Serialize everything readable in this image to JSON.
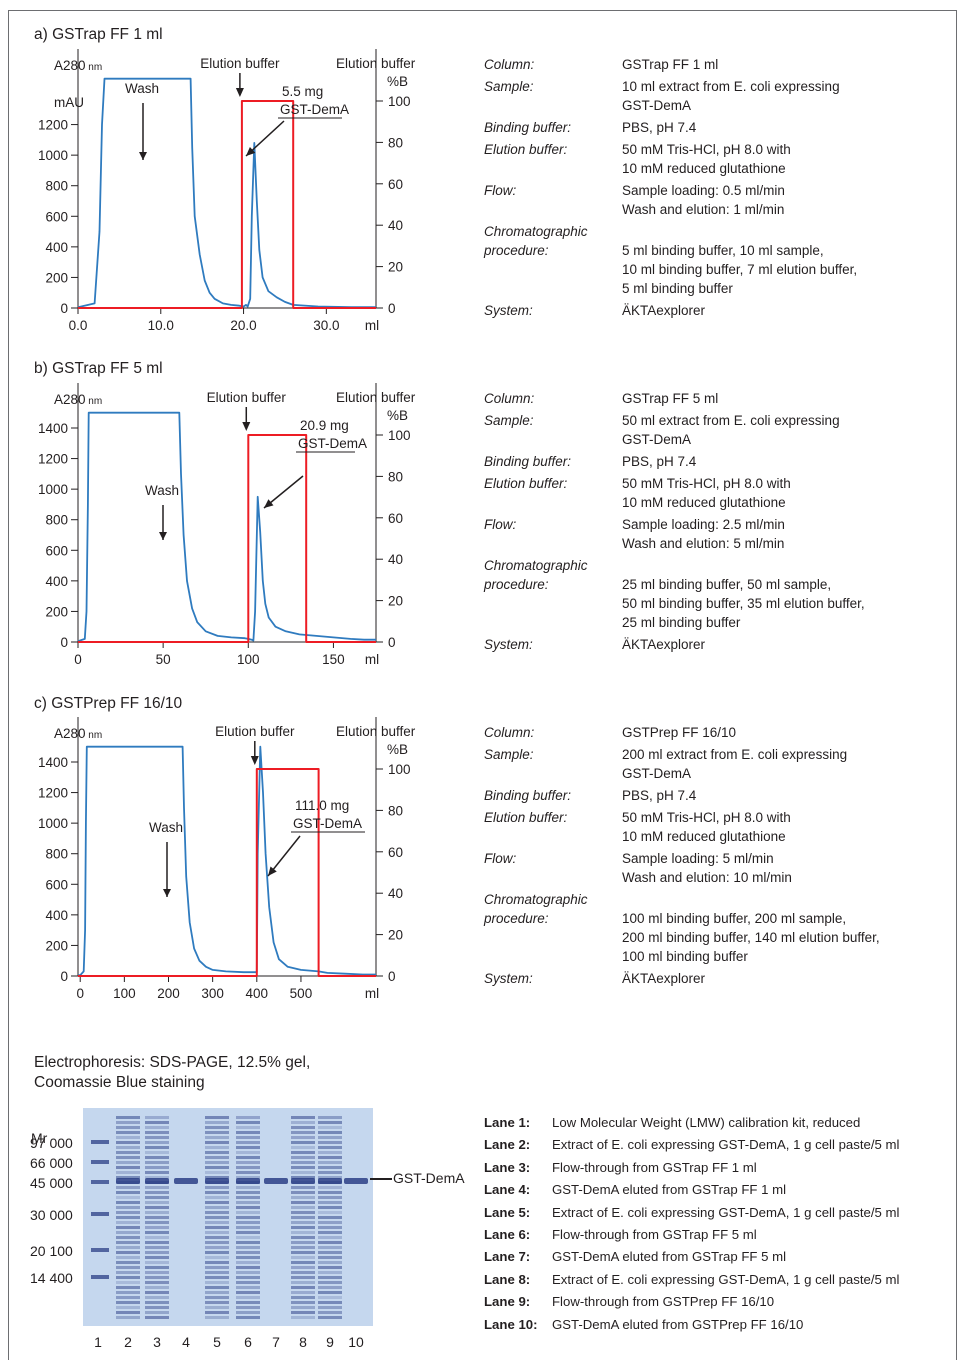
{
  "panels": [
    {
      "title": "a) GSTrap FF 1 ml",
      "chart_data": {
        "type": "line",
        "ylabel_left": "A280 nm",
        "ylabel_left_unit": "mAU",
        "ylabel_right_top": "Elution buffer",
        "ylabel_right_unit": "%B",
        "xunit": "ml",
        "xlim": [
          0,
          36
        ],
        "xticks": [
          0,
          10,
          20,
          30
        ],
        "xtick_labels": [
          "0.0",
          "10.0",
          "20.0",
          "30.0"
        ],
        "ylim_left": [
          0,
          1400
        ],
        "yticks_left": [
          0,
          200,
          400,
          600,
          800,
          1000,
          1200
        ],
        "ylim_right": [
          0,
          100
        ],
        "yticks_right": [
          0,
          20,
          40,
          60,
          80,
          100
        ],
        "series": [
          {
            "color": "#2f7bbf",
            "x": [
              -1,
              0,
              2.0,
              2.6,
              2.9,
              3.2,
              13.6,
              13.8,
              14.1,
              14.7,
              15.3,
              15.9,
              16.5,
              17.5,
              18.5,
              19.5,
              20.0,
              20.3,
              20.5,
              20.8,
              21.0,
              21.3,
              21.6,
              21.9,
              22.3,
              23,
              24,
              25,
              26,
              29,
              33,
              36
            ],
            "y": [
              5,
              5,
              30,
              500,
              1200,
              1500,
              1500,
              1050,
              600,
              350,
              180,
              100,
              60,
              30,
              20,
              15,
              10,
              20,
              10,
              60,
              600,
              1080,
              700,
              380,
              200,
              110,
              70,
              40,
              20,
              10,
              5,
              5
            ]
          },
          {
            "color": "#ed1c24",
            "x": [
              0,
              19.8,
              19.8,
              26.0,
              26.0,
              36
            ],
            "y": [
              0,
              0,
              100,
              100,
              0,
              0
            ],
            "axis": "right"
          }
        ],
        "annotations": {
          "wash": "Wash",
          "elution": "Elution buffer",
          "mg": "5.5 mg",
          "protein": "GST-DemA"
        }
      },
      "info": [
        {
          "label": "Column:",
          "value": "GSTrap FF 1 ml"
        },
        {
          "label": "Sample:",
          "value": "10 ml extract from E. coli expressing\nGST-DemA"
        },
        {
          "label": "Binding buffer:",
          "value": "PBS, pH 7.4"
        },
        {
          "label": "Elution buffer:",
          "value": "50 mM Tris-HCl, pH 8.0 with\n10 mM reduced glutathione"
        },
        {
          "label": "Flow:",
          "value": "Sample loading: 0.5 ml/min\nWash and elution: 1 ml/min"
        },
        {
          "label": "Chromatographic\nprocedure:",
          "value": "\n5 ml binding buffer, 10 ml sample,\n10 ml binding buffer, 7 ml elution buffer,\n5 ml binding buffer"
        },
        {
          "label": "System:",
          "value": "ÄKTAexplorer"
        }
      ]
    },
    {
      "title": "b) GSTrap FF 5 ml",
      "chart_data": {
        "type": "line",
        "ylabel_left": "A280 nm",
        "ylabel_left_unit": "",
        "ylabel_right_top": "Elution buffer",
        "ylabel_right_unit": "%B",
        "xunit": "ml",
        "xlim": [
          0,
          175
        ],
        "xticks": [
          0,
          50,
          100,
          150
        ],
        "xtick_labels": [
          "0",
          "50",
          "100",
          "150"
        ],
        "ylim_left": [
          0,
          1400
        ],
        "yticks_left": [
          0,
          200,
          400,
          600,
          800,
          1000,
          1200,
          1400
        ],
        "ylim_right": [
          0,
          100
        ],
        "yticks_right": [
          0,
          20,
          40,
          60,
          80,
          100
        ],
        "series": [
          {
            "color": "#2f7bbf",
            "x": [
              -3,
              0,
              4,
              5,
              5.8,
              6.3,
              59.5,
              60.5,
              62,
              64,
              67,
              70,
              75,
              82,
              90,
              98,
              100,
              102,
              103,
              104,
              105.5,
              107,
              108.5,
              110,
              112,
              116,
              122,
              130,
              140,
              150,
              160,
              168,
              175
            ],
            "y": [
              5,
              5,
              20,
              200,
              900,
              1500,
              1500,
              1100,
              700,
              400,
              220,
              130,
              70,
              40,
              30,
              25,
              20,
              15,
              10,
              200,
              950,
              720,
              400,
              250,
              160,
              100,
              70,
              50,
              40,
              30,
              20,
              15,
              15
            ]
          },
          {
            "color": "#ed1c24",
            "x": [
              0,
              100,
              100,
              134,
              134,
              175
            ],
            "y": [
              0,
              0,
              100,
              100,
              0,
              0
            ],
            "axis": "right"
          }
        ],
        "annotations": {
          "wash": "Wash",
          "elution": "Elution buffer",
          "mg": "20.9 mg",
          "protein": "GST-DemA"
        }
      },
      "info": [
        {
          "label": "Column:",
          "value": "GSTrap FF 5 ml"
        },
        {
          "label": "Sample:",
          "value": "50 ml extract from E. coli expressing\nGST-DemA"
        },
        {
          "label": "Binding buffer:",
          "value": "PBS, pH 7.4"
        },
        {
          "label": "Elution buffer:",
          "value": "50 mM Tris-HCl, pH 8.0 with\n10 mM reduced glutathione"
        },
        {
          "label": "Flow:",
          "value": "Sample loading: 2.5 ml/min\nWash and elution: 5 ml/min"
        },
        {
          "label": "Chromatographic\nprocedure:",
          "value": "\n25 ml binding buffer, 50 ml sample,\n50 ml binding buffer, 35 ml elution buffer,\n25 ml binding buffer"
        },
        {
          "label": "System:",
          "value": "ÄKTAexplorer"
        }
      ]
    },
    {
      "title": "c) GSTPrep FF 16/10",
      "chart_data": {
        "type": "line",
        "ylabel_left": "A280 nm",
        "ylabel_left_unit": "",
        "ylabel_right_top": "Elution buffer",
        "ylabel_right_unit": "%B",
        "xunit": "ml",
        "xlim": [
          -5,
          670
        ],
        "xticks": [
          0,
          100,
          200,
          300,
          400,
          500
        ],
        "xtick_labels": [
          "0",
          "100",
          "200",
          "300",
          "400",
          "500"
        ],
        "ylim_left": [
          0,
          1400
        ],
        "yticks_left": [
          0,
          200,
          400,
          600,
          800,
          1000,
          1200,
          1400
        ],
        "ylim_right": [
          0,
          100
        ],
        "yticks_right": [
          0,
          20,
          40,
          60,
          80,
          100
        ],
        "series": [
          {
            "color": "#2f7bbf",
            "x": [
              -5,
              0,
              8,
              11,
              13,
              15,
              232,
              235,
              240,
              248,
              258,
              270,
              285,
              300,
              330,
              370,
              400,
              402,
              408,
              414,
              420,
              428,
              438,
              450,
              470,
              500,
              540,
              560,
              600,
              640,
              670
            ],
            "y": [
              5,
              5,
              30,
              300,
              1000,
              1500,
              1500,
              1100,
              650,
              350,
              180,
              100,
              60,
              40,
              30,
              25,
              25,
              800,
              1500,
              1200,
              800,
              450,
              220,
              110,
              60,
              40,
              30,
              20,
              15,
              10,
              10
            ]
          },
          {
            "color": "#ed1c24",
            "x": [
              -5,
              400,
              400,
              540,
              540,
              670
            ],
            "y": [
              0,
              0,
              100,
              100,
              0,
              0
            ],
            "axis": "right"
          }
        ],
        "annotations": {
          "wash": "Wash",
          "elution": "Elution buffer",
          "mg": "111.0 mg",
          "protein": "GST-DemA"
        }
      },
      "info": [
        {
          "label": "Column:",
          "value": "GSTPrep FF 16/10"
        },
        {
          "label": "Sample:",
          "value": "200 ml extract from E. coli expressing\nGST-DemA"
        },
        {
          "label": "Binding buffer:",
          "value": "PBS, pH 7.4"
        },
        {
          "label": "Elution buffer:",
          "value": "50 mM Tris-HCl, pH 8.0 with\n10 mM reduced glutathione"
        },
        {
          "label": "Flow:",
          "value": "Sample loading: 5 ml/min\nWash and elution: 10 ml/min"
        },
        {
          "label": "Chromatographic\nprocedure:",
          "value": "\n100 ml binding buffer, 200 ml sample,\n200 ml binding buffer, 140 ml elution buffer,\n100 ml binding buffer"
        },
        {
          "label": "System:",
          "value": "ÄKTAexplorer"
        }
      ]
    }
  ],
  "gel": {
    "title": "Electrophoresis: SDS-PAGE, 12.5% gel,\nCoomassie Blue staining",
    "mr_label": "Mr",
    "mw_markers": [
      "97 000",
      "66 000",
      "45 000",
      "30 000",
      "20 100",
      "14 400"
    ],
    "lane_numbers": [
      "1",
      "2",
      "3",
      "4",
      "5",
      "6",
      "7",
      "8",
      "9",
      "10"
    ],
    "band_label": "GST-DemA",
    "colors": {
      "gel": "#c5d7ee",
      "band": "#2b3f86"
    },
    "lanes": [
      {
        "key": "Lane 1:",
        "text": "Low Molecular Weight (LMW) calibration kit, reduced"
      },
      {
        "key": "Lane 2:",
        "text": "Extract of E. coli expressing GST-DemA, 1 g cell paste/5 ml"
      },
      {
        "key": "Lane 3:",
        "text": "Flow-through from GSTrap FF 1 ml"
      },
      {
        "key": "Lane 4:",
        "text": "GST-DemA eluted from GSTrap FF 1 ml"
      },
      {
        "key": "Lane 5:",
        "text": "Extract of E. coli expressing GST-DemA, 1 g cell paste/5 ml"
      },
      {
        "key": "Lane 6:",
        "text": "Flow-through from GSTrap FF 5 ml"
      },
      {
        "key": "Lane 7:",
        "text": "GST-DemA eluted from GSTrap FF 5 ml"
      },
      {
        "key": "Lane 8:",
        "text": "Extract of E. coli expressing GST-DemA, 1 g cell paste/5 ml"
      },
      {
        "key": "Lane 9:",
        "text": "Flow-through from GSTPrep FF 16/10"
      },
      {
        "key": "Lane 10:",
        "text": "GST-DemA eluted from GSTPrep FF 16/10"
      }
    ]
  }
}
